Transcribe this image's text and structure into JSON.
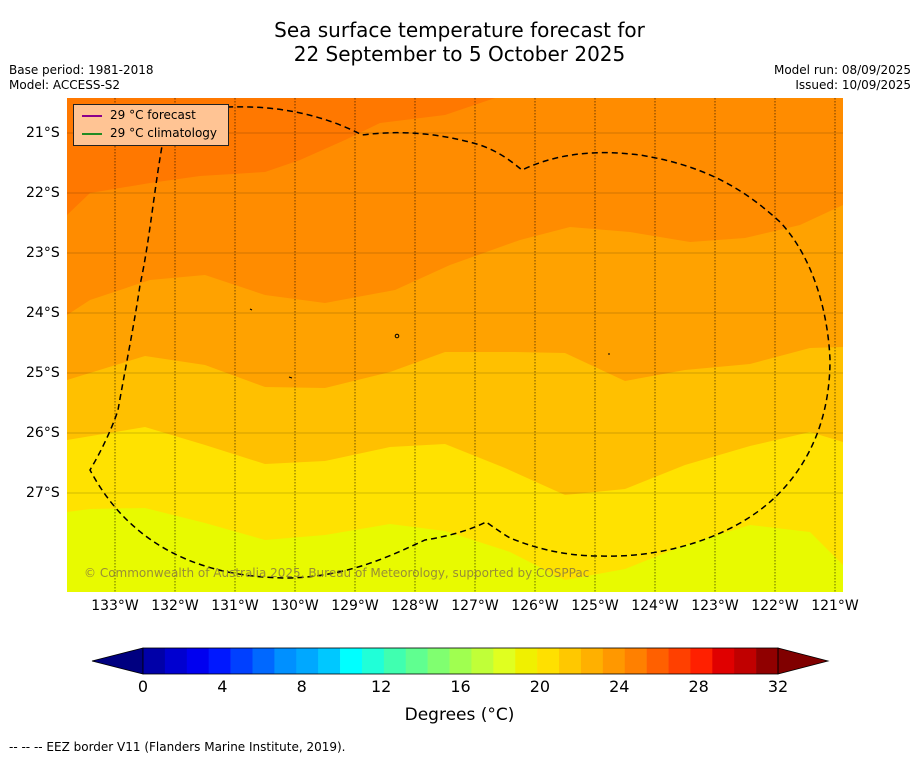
{
  "title": {
    "line1": "Sea surface temperature forecast for",
    "line2": "22 September to 5 October 2025"
  },
  "meta": {
    "base_period": "Base period: 1981-2018",
    "model": "Model: ACCESS-S2",
    "model_run": "Model run: 08/09/2025",
    "issued": "Issued: 10/09/2025"
  },
  "legend": {
    "forecast": {
      "label": "29 °C  forecast",
      "color": "#8b008b"
    },
    "climatology": {
      "label": "29 °C  climatology",
      "color": "#228b22"
    }
  },
  "map": {
    "lat_labels": [
      "21°S",
      "22°S",
      "23°S",
      "24°S",
      "25°S",
      "26°S",
      "27°S"
    ],
    "lon_labels": [
      "133°W",
      "132°W",
      "131°W",
      "130°W",
      "129°W",
      "128°W",
      "127°W",
      "126°W",
      "125°W",
      "124°W",
      "123°W",
      "122°W",
      "121°W"
    ],
    "copyright": "© Commonwealth of Australia 2025, Bureau of Meteorology, supported by COSPPac"
  },
  "colorbar": {
    "tick_labels": [
      "0",
      "4",
      "8",
      "12",
      "16",
      "20",
      "24",
      "28",
      "32"
    ],
    "unit": "Degrees (°C)",
    "colors": [
      "#000080",
      "#0000a8",
      "#0000d0",
      "#0000f0",
      "#0018ff",
      "#0040ff",
      "#0068ff",
      "#0090ff",
      "#00a8ff",
      "#00c8ff",
      "#00ffff",
      "#20ffd8",
      "#40ffb0",
      "#60ff90",
      "#80ff70",
      "#a0ff50",
      "#c0ff38",
      "#e0ff20",
      "#f0f000",
      "#ffe000",
      "#ffc800",
      "#ffb000",
      "#ff9800",
      "#ff8000",
      "#ff6000",
      "#ff4000",
      "#ff2000",
      "#e00000",
      "#c00000",
      "#900000",
      "#800000"
    ]
  },
  "footnote": "--  --  -- EEZ border V11 (Flanders Marine Institute, 2019)."
}
